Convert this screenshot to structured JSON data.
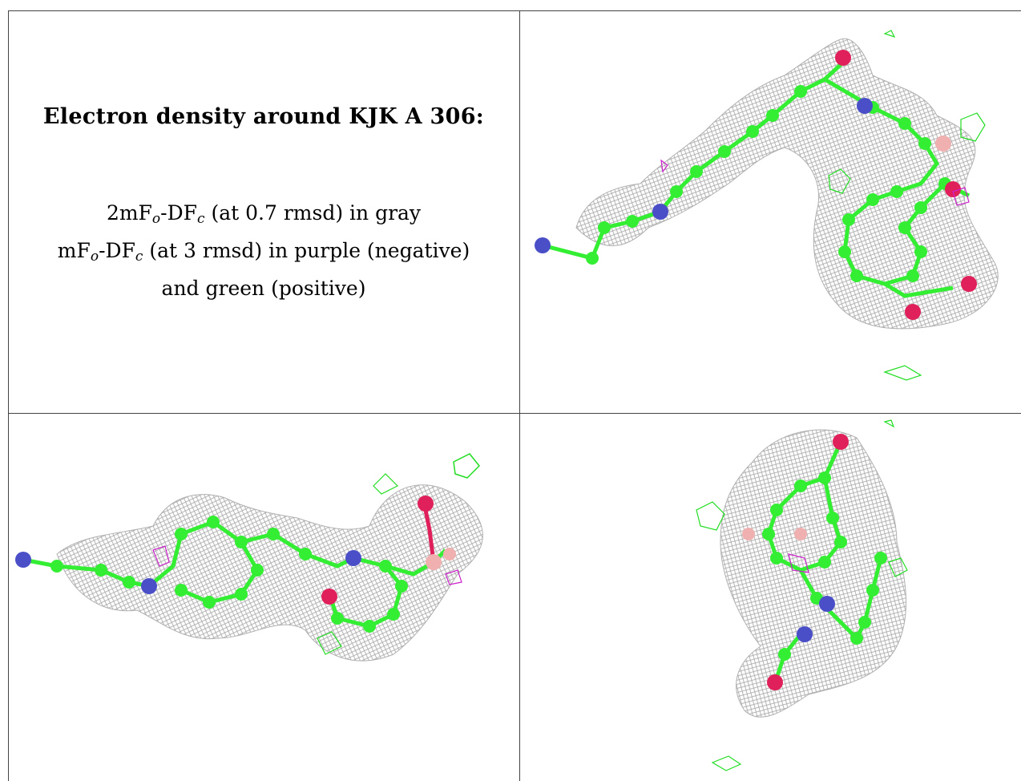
{
  "title": "Electron density around KJK A 306:",
  "legend": {
    "line1_a": "2mF",
    "line1_sub1": "o",
    "line1_b": "-DF",
    "line1_sub2": "c",
    "line1_c": " (at 0.7 rmsd) in gray",
    "line2_a": "mF",
    "line2_sub1": "o",
    "line2_b": "-DF",
    "line2_sub2": "c",
    "line2_c": " (at 3 rmsd) in purple (negative)",
    "line3": "and green (positive)"
  },
  "colors": {
    "carbon": "#33ee33",
    "nitrogen": "#4a4fc8",
    "oxygen": "#e0205a",
    "other": "#f0b0b0",
    "mesh": "#a8a8a8",
    "neg_diff": "#cc22cc",
    "pos_diff": "#22dd22",
    "grid": "#444444"
  },
  "views": [
    "top-right-view",
    "bottom-left-view",
    "bottom-right-view"
  ]
}
